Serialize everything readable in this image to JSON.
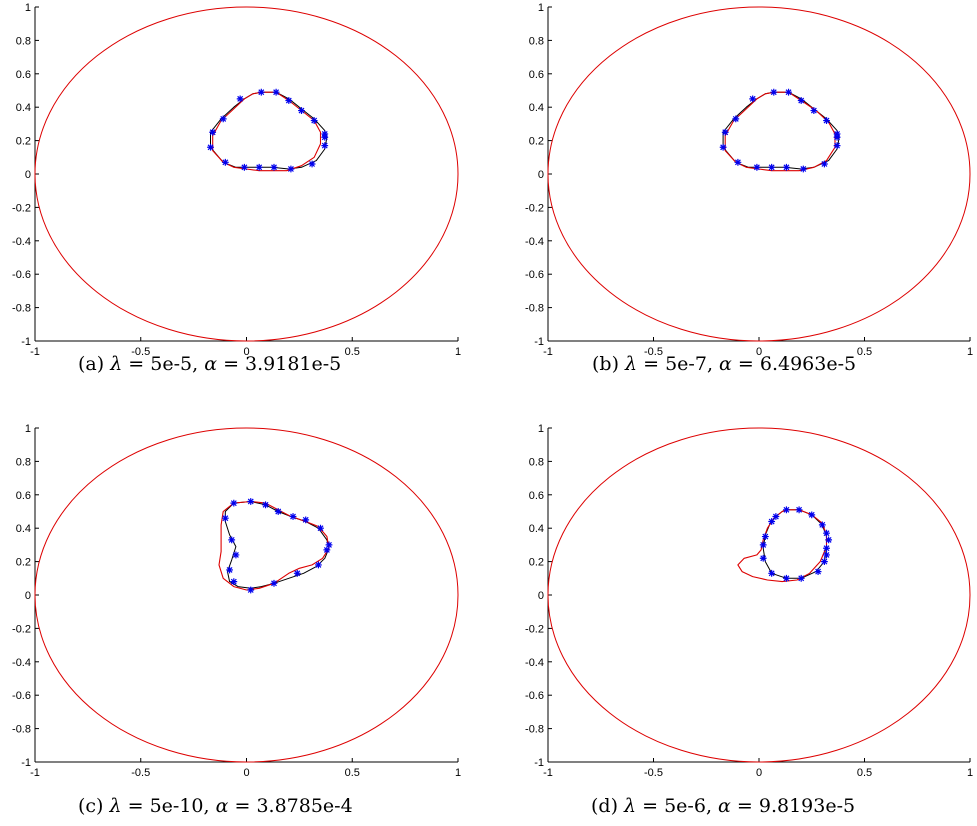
{
  "colors": {
    "boundary": "#dd0000",
    "reconstruction": "#dd0000",
    "exact": "#000000",
    "markers": "#0000ee"
  },
  "chart_data": [
    {
      "type": "line",
      "xlim": [
        -1,
        1
      ],
      "ylim": [
        -1,
        1
      ],
      "xticks": [
        "-1",
        "-0.5",
        "0",
        "0.5",
        "1"
      ],
      "yticks": [
        "-1",
        "-0.8",
        "-0.6",
        "-0.4",
        "-0.2",
        "0",
        "0.2",
        "0.4",
        "0.6",
        "0.8",
        "1"
      ],
      "grid": false,
      "caption": {
        "tag": "(a)",
        "lambda": "5e-5",
        "alpha": "3.9181e-5"
      },
      "outer_circle": {
        "cx": 0,
        "cy": 0,
        "r": 1
      },
      "true_curve": [
        [
          0.07,
          0.49
        ],
        [
          0.14,
          0.49
        ],
        [
          0.2,
          0.45
        ],
        [
          0.26,
          0.39
        ],
        [
          0.32,
          0.33
        ],
        [
          0.37,
          0.26
        ],
        [
          0.38,
          0.22
        ],
        [
          0.37,
          0.15
        ],
        [
          0.33,
          0.08
        ],
        [
          0.26,
          0.04
        ],
        [
          0.2,
          0.03
        ],
        [
          0.12,
          0.04
        ],
        [
          0.06,
          0.04
        ],
        [
          0,
          0.04
        ],
        [
          -0.05,
          0.04
        ],
        [
          -0.11,
          0.07
        ],
        [
          -0.17,
          0.16
        ],
        [
          -0.17,
          0.25
        ],
        [
          -0.12,
          0.33
        ],
        [
          -0.06,
          0.4
        ],
        [
          -0.01,
          0.45
        ],
        [
          0.03,
          0.48
        ]
      ],
      "reconstruction": [
        [
          0.07,
          0.49
        ],
        [
          0.14,
          0.49
        ],
        [
          0.2,
          0.44
        ],
        [
          0.26,
          0.38
        ],
        [
          0.32,
          0.32
        ],
        [
          0.35,
          0.25
        ],
        [
          0.35,
          0.18
        ],
        [
          0.32,
          0.1
        ],
        [
          0.26,
          0.05
        ],
        [
          0.19,
          0.02
        ],
        [
          0.12,
          0.02
        ],
        [
          0.06,
          0.02
        ],
        [
          0,
          0.03
        ],
        [
          -0.06,
          0.04
        ],
        [
          -0.11,
          0.07
        ],
        [
          -0.16,
          0.14
        ],
        [
          -0.16,
          0.23
        ],
        [
          -0.12,
          0.32
        ],
        [
          -0.06,
          0.39
        ],
        [
          -0.01,
          0.45
        ],
        [
          0.03,
          0.48
        ]
      ],
      "markers": [
        [
          0.07,
          0.49
        ],
        [
          0.14,
          0.49
        ],
        [
          0.2,
          0.44
        ],
        [
          0.26,
          0.38
        ],
        [
          0.32,
          0.32
        ],
        [
          0.37,
          0.24
        ],
        [
          0.37,
          0.22
        ],
        [
          0.37,
          0.17
        ],
        [
          0.31,
          0.06
        ],
        [
          0.21,
          0.03
        ],
        [
          0.13,
          0.04
        ],
        [
          0.06,
          0.04
        ],
        [
          -0.01,
          0.04
        ],
        [
          -0.1,
          0.07
        ],
        [
          -0.17,
          0.16
        ],
        [
          -0.16,
          0.25
        ],
        [
          -0.11,
          0.33
        ],
        [
          -0.03,
          0.45
        ]
      ]
    },
    {
      "type": "line",
      "xlim": [
        -1,
        1
      ],
      "ylim": [
        -1,
        1
      ],
      "xticks": [
        "-1",
        "-0.5",
        "0",
        "0.5",
        "1"
      ],
      "yticks": [
        "-1",
        "-0.8",
        "-0.6",
        "-0.4",
        "-0.2",
        "0",
        "0.2",
        "0.4",
        "0.6",
        "0.8",
        "1"
      ],
      "grid": false,
      "caption": {
        "tag": "(b)",
        "lambda": "5e-7",
        "alpha": "6.4963e-5"
      },
      "outer_circle": {
        "cx": 0,
        "cy": 0,
        "r": 1
      },
      "true_curve": [
        [
          0.07,
          0.49
        ],
        [
          0.14,
          0.49
        ],
        [
          0.2,
          0.45
        ],
        [
          0.26,
          0.39
        ],
        [
          0.32,
          0.33
        ],
        [
          0.37,
          0.26
        ],
        [
          0.38,
          0.22
        ],
        [
          0.37,
          0.15
        ],
        [
          0.33,
          0.08
        ],
        [
          0.26,
          0.04
        ],
        [
          0.2,
          0.03
        ],
        [
          0.12,
          0.04
        ],
        [
          0.06,
          0.04
        ],
        [
          0,
          0.04
        ],
        [
          -0.05,
          0.04
        ],
        [
          -0.11,
          0.07
        ],
        [
          -0.17,
          0.16
        ],
        [
          -0.17,
          0.25
        ],
        [
          -0.12,
          0.33
        ],
        [
          -0.06,
          0.4
        ],
        [
          -0.01,
          0.45
        ],
        [
          0.03,
          0.48
        ]
      ],
      "reconstruction": [
        [
          0.07,
          0.49
        ],
        [
          0.14,
          0.49
        ],
        [
          0.2,
          0.44
        ],
        [
          0.27,
          0.38
        ],
        [
          0.33,
          0.31
        ],
        [
          0.36,
          0.24
        ],
        [
          0.36,
          0.16
        ],
        [
          0.32,
          0.08
        ],
        [
          0.26,
          0.04
        ],
        [
          0.19,
          0.02
        ],
        [
          0.12,
          0.02
        ],
        [
          0.06,
          0.02
        ],
        [
          0,
          0.03
        ],
        [
          -0.06,
          0.04
        ],
        [
          -0.11,
          0.07
        ],
        [
          -0.16,
          0.14
        ],
        [
          -0.16,
          0.23
        ],
        [
          -0.12,
          0.32
        ],
        [
          -0.06,
          0.39
        ],
        [
          -0.01,
          0.45
        ],
        [
          0.03,
          0.48
        ]
      ],
      "markers": [
        [
          0.07,
          0.49
        ],
        [
          0.14,
          0.49
        ],
        [
          0.2,
          0.44
        ],
        [
          0.26,
          0.38
        ],
        [
          0.32,
          0.32
        ],
        [
          0.37,
          0.24
        ],
        [
          0.37,
          0.22
        ],
        [
          0.37,
          0.17
        ],
        [
          0.31,
          0.06
        ],
        [
          0.21,
          0.03
        ],
        [
          0.13,
          0.04
        ],
        [
          0.06,
          0.04
        ],
        [
          -0.01,
          0.04
        ],
        [
          -0.1,
          0.07
        ],
        [
          -0.17,
          0.16
        ],
        [
          -0.16,
          0.25
        ],
        [
          -0.11,
          0.33
        ],
        [
          -0.03,
          0.45
        ]
      ]
    },
    {
      "type": "line",
      "xlim": [
        -1,
        1
      ],
      "ylim": [
        -1,
        1
      ],
      "xticks": [
        "-1",
        "-0.5",
        "0",
        "0.5",
        "1"
      ],
      "yticks": [
        "-1",
        "-0.8",
        "-0.6",
        "-0.4",
        "-0.2",
        "0",
        "0.2",
        "0.4",
        "0.6",
        "0.8",
        "1"
      ],
      "grid": false,
      "caption": {
        "tag": "(c)",
        "lambda": "5e-10",
        "alpha": "3.8785e-4"
      },
      "outer_circle": {
        "cx": 0,
        "cy": 0,
        "r": 1
      },
      "true_curve": [
        [
          0.02,
          0.56
        ],
        [
          0.09,
          0.54
        ],
        [
          0.15,
          0.5
        ],
        [
          0.21,
          0.47
        ],
        [
          0.28,
          0.44
        ],
        [
          0.34,
          0.4
        ],
        [
          0.38,
          0.33
        ],
        [
          0.39,
          0.28
        ],
        [
          0.37,
          0.22
        ],
        [
          0.33,
          0.17
        ],
        [
          0.27,
          0.13
        ],
        [
          0.2,
          0.1
        ],
        [
          0.13,
          0.07
        ],
        [
          0.07,
          0.05
        ],
        [
          0.02,
          0.04
        ],
        [
          -0.04,
          0.05
        ],
        [
          -0.08,
          0.08
        ],
        [
          -0.09,
          0.14
        ],
        [
          -0.07,
          0.21
        ],
        [
          -0.05,
          0.29
        ],
        [
          -0.08,
          0.36
        ],
        [
          -0.1,
          0.44
        ],
        [
          -0.1,
          0.5
        ],
        [
          -0.06,
          0.55
        ]
      ],
      "reconstruction": [
        [
          0.02,
          0.56
        ],
        [
          0.09,
          0.55
        ],
        [
          0.15,
          0.51
        ],
        [
          0.21,
          0.47
        ],
        [
          0.28,
          0.44
        ],
        [
          0.34,
          0.41
        ],
        [
          0.38,
          0.35
        ],
        [
          0.39,
          0.28
        ],
        [
          0.36,
          0.22
        ],
        [
          0.31,
          0.18
        ],
        [
          0.25,
          0.16
        ],
        [
          0.2,
          0.13
        ],
        [
          0.13,
          0.07
        ],
        [
          0.06,
          0.04
        ],
        [
          0,
          0.03
        ],
        [
          -0.06,
          0.05
        ],
        [
          -0.11,
          0.1
        ],
        [
          -0.13,
          0.18
        ],
        [
          -0.12,
          0.26
        ],
        [
          -0.12,
          0.34
        ],
        [
          -0.12,
          0.42
        ],
        [
          -0.11,
          0.5
        ],
        [
          -0.06,
          0.55
        ]
      ],
      "markers": [
        [
          -0.06,
          0.55
        ],
        [
          0.02,
          0.56
        ],
        [
          0.09,
          0.54
        ],
        [
          0.15,
          0.5
        ],
        [
          0.22,
          0.47
        ],
        [
          0.28,
          0.45
        ],
        [
          0.35,
          0.4
        ],
        [
          0.39,
          0.3
        ],
        [
          0.38,
          0.27
        ],
        [
          0.34,
          0.18
        ],
        [
          0.24,
          0.13
        ],
        [
          0.13,
          0.07
        ],
        [
          0.02,
          0.03
        ],
        [
          -0.06,
          0.08
        ],
        [
          -0.08,
          0.15
        ],
        [
          -0.05,
          0.24
        ],
        [
          -0.07,
          0.33
        ],
        [
          -0.1,
          0.46
        ]
      ]
    },
    {
      "type": "line",
      "xlim": [
        -1,
        1
      ],
      "ylim": [
        -1,
        1
      ],
      "xticks": [
        "-1",
        "-0.5",
        "0",
        "0.5",
        "1"
      ],
      "yticks": [
        "-1",
        "-0.8",
        "-0.6",
        "-0.4",
        "-0.2",
        "0",
        "0.2",
        "0.4",
        "0.6",
        "0.8",
        "1"
      ],
      "grid": false,
      "caption": {
        "tag": "(d)",
        "lambda": "5e-6",
        "alpha": "9.8193e-5"
      },
      "outer_circle": {
        "cx": 0,
        "cy": 0,
        "r": 1
      },
      "true_curve": [
        [
          0.13,
          0.51
        ],
        [
          0.19,
          0.51
        ],
        [
          0.25,
          0.48
        ],
        [
          0.3,
          0.42
        ],
        [
          0.32,
          0.35
        ],
        [
          0.32,
          0.28
        ],
        [
          0.31,
          0.2
        ],
        [
          0.27,
          0.14
        ],
        [
          0.2,
          0.1
        ],
        [
          0.13,
          0.1
        ],
        [
          0.06,
          0.13
        ],
        [
          0.03,
          0.2
        ],
        [
          0.02,
          0.28
        ],
        [
          0.03,
          0.36
        ],
        [
          0.05,
          0.42
        ],
        [
          0.08,
          0.47
        ],
        [
          0.11,
          0.5
        ]
      ],
      "reconstruction": [
        [
          0.13,
          0.51
        ],
        [
          0.19,
          0.51
        ],
        [
          0.25,
          0.48
        ],
        [
          0.3,
          0.43
        ],
        [
          0.32,
          0.36
        ],
        [
          0.32,
          0.29
        ],
        [
          0.29,
          0.2
        ],
        [
          0.24,
          0.13
        ],
        [
          0.18,
          0.09
        ],
        [
          0.11,
          0.08
        ],
        [
          0.04,
          0.09
        ],
        [
          -0.03,
          0.11
        ],
        [
          -0.08,
          0.14
        ],
        [
          -0.1,
          0.18
        ],
        [
          -0.07,
          0.22
        ],
        [
          -0.01,
          0.24
        ],
        [
          0.01,
          0.27
        ],
        [
          0.02,
          0.33
        ],
        [
          0.04,
          0.4
        ],
        [
          0.07,
          0.46
        ],
        [
          0.11,
          0.5
        ]
      ],
      "markers": [
        [
          0.13,
          0.51
        ],
        [
          0.19,
          0.51
        ],
        [
          0.25,
          0.48
        ],
        [
          0.3,
          0.42
        ],
        [
          0.32,
          0.37
        ],
        [
          0.33,
          0.33
        ],
        [
          0.32,
          0.28
        ],
        [
          0.32,
          0.24
        ],
        [
          0.31,
          0.2
        ],
        [
          0.28,
          0.14
        ],
        [
          0.2,
          0.1
        ],
        [
          0.13,
          0.1
        ],
        [
          0.06,
          0.13
        ],
        [
          0.02,
          0.22
        ],
        [
          0.02,
          0.3
        ],
        [
          0.03,
          0.35
        ],
        [
          0.06,
          0.44
        ],
        [
          0.08,
          0.47
        ]
      ]
    }
  ]
}
